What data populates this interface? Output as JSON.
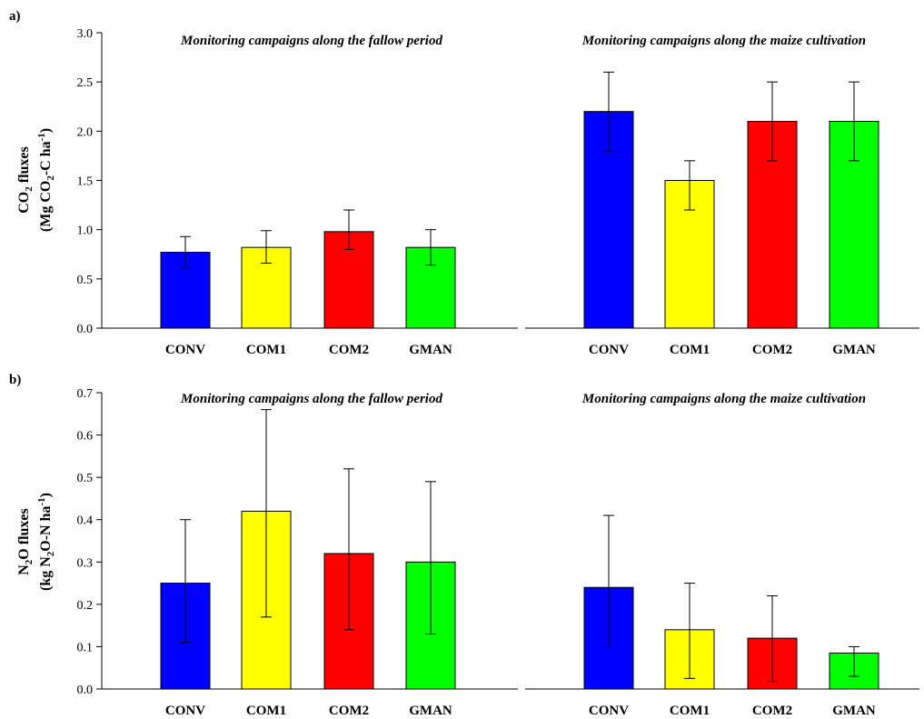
{
  "panels": [
    {
      "letter": "a)",
      "ylabel_line1": "CO2 fluxes",
      "ylabel_line2": "(Mg CO2-C ha-1)",
      "yticks": [
        "0.0",
        "0.5",
        "1.0",
        "1.5",
        "2.0",
        "2.5",
        "3.0"
      ]
    },
    {
      "letter": "b)",
      "ylabel_line1": "N2O fluxes",
      "ylabel_line2": "(kg N2O-N ha-1)",
      "yticks": [
        "0.0",
        "0.1",
        "0.2",
        "0.3",
        "0.4",
        "0.5",
        "0.6",
        "0.7"
      ]
    }
  ],
  "colors": {
    "CONV": "#0000ff",
    "COM1": "#ffff00",
    "COM2": "#ff0000",
    "GMAN": "#00ff00"
  },
  "chart_data": [
    {
      "type": "bar",
      "panel": "a)",
      "title": "Monitoring campaigns along the fallow period",
      "ylabel": "CO2 fluxes (Mg CO2-C ha-1)",
      "ylim": [
        0,
        3.0
      ],
      "categories": [
        "CONV",
        "COM1",
        "COM2",
        "GMAN"
      ],
      "values": [
        0.77,
        0.82,
        0.98,
        0.82
      ],
      "error_low": [
        0.62,
        0.66,
        0.8,
        0.64
      ],
      "error_high": [
        0.93,
        0.99,
        1.2,
        1.0
      ]
    },
    {
      "type": "bar",
      "panel": "a)",
      "title": "Monitoring campaigns along the maize cultivation",
      "ylabel": "CO2 fluxes (Mg CO2-C ha-1)",
      "ylim": [
        0,
        3.0
      ],
      "categories": [
        "CONV",
        "COM1",
        "COM2",
        "GMAN"
      ],
      "values": [
        2.2,
        1.5,
        2.1,
        2.1
      ],
      "error_low": [
        1.8,
        1.2,
        1.7,
        1.7
      ],
      "error_high": [
        2.6,
        1.7,
        2.5,
        2.5
      ]
    },
    {
      "type": "bar",
      "panel": "b)",
      "title": "Monitoring campaigns along the fallow period",
      "ylabel": "N2O fluxes (kg N2O-N ha-1)",
      "ylim": [
        0,
        0.7
      ],
      "categories": [
        "CONV",
        "COM1",
        "COM2",
        "GMAN"
      ],
      "values": [
        0.25,
        0.42,
        0.32,
        0.3
      ],
      "error_low": [
        0.11,
        0.17,
        0.14,
        0.13
      ],
      "error_high": [
        0.4,
        0.66,
        0.52,
        0.49
      ]
    },
    {
      "type": "bar",
      "panel": "b)",
      "title": "Monitoring campaigns along the maize cultivation",
      "ylabel": "N2O fluxes (kg N2O-N ha-1)",
      "ylim": [
        0,
        0.7
      ],
      "categories": [
        "CONV",
        "COM1",
        "COM2",
        "GMAN"
      ],
      "values": [
        0.24,
        0.14,
        0.12,
        0.085
      ],
      "error_low": [
        0.1,
        0.025,
        0.018,
        0.03
      ],
      "error_high": [
        0.41,
        0.25,
        0.22,
        0.1
      ]
    }
  ]
}
